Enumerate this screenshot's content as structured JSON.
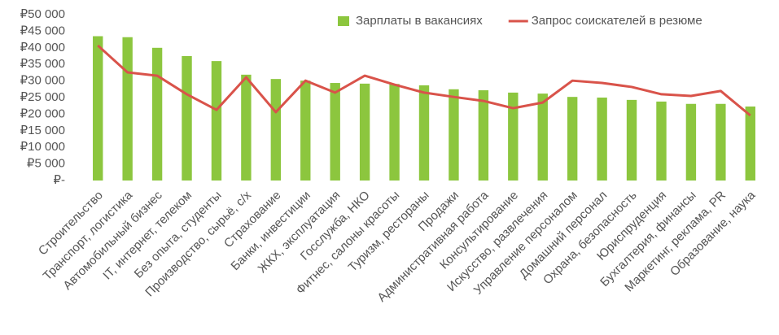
{
  "chart_data": {
    "type": "bar",
    "categories": [
      "Строительство",
      "Транспорт, логистика",
      "Автомобильный бизнес",
      "IT, интернет, телеком",
      "Без опыта, студенты",
      "Производство, сырьё, с/х",
      "Страхование",
      "Банки, инвестиции",
      "ЖКХ, эксплуатация",
      "Госслужба, НКО",
      "Фитнес, салоны красоты",
      "Туризм, рестораны",
      "Продажи",
      "Административная работа",
      "Консультирование",
      "Искусство, развлечения",
      "Управление персоналом",
      "Домашний персонал",
      "Охрана, безопасность",
      "Юриспруденция",
      "Бухгалтерия, финансы",
      "Маркетинг, реклама, PR",
      "Образование, наука"
    ],
    "series": [
      {
        "name": "Зарплаты в вакансиях",
        "type": "bar",
        "color": "#8cc63e",
        "values": [
          43500,
          43200,
          40000,
          37500,
          36000,
          31900,
          30600,
          30100,
          29400,
          29200,
          29100,
          28700,
          27500,
          27200,
          26500,
          26200,
          25200,
          25000,
          24300,
          23800,
          23100,
          23100,
          22300
        ]
      },
      {
        "name": "Запрос соискателей в резюме",
        "type": "line",
        "color": "#d9534a",
        "values": [
          40700,
          32600,
          31600,
          26000,
          21300,
          31100,
          20600,
          30100,
          26500,
          31600,
          28900,
          26500,
          25200,
          24000,
          21800,
          23500,
          30100,
          29400,
          28200,
          26000,
          25500,
          27000,
          19600
        ]
      }
    ],
    "ylim": [
      0,
      50000
    ],
    "yticks": [
      {
        "value": 0,
        "label": "₽-"
      },
      {
        "value": 5000,
        "label": "₽5 000"
      },
      {
        "value": 10000,
        "label": "₽10 000"
      },
      {
        "value": 15000,
        "label": "₽15 000"
      },
      {
        "value": 20000,
        "label": "₽20 000"
      },
      {
        "value": 25000,
        "label": "₽25 000"
      },
      {
        "value": 30000,
        "label": "₽30 000"
      },
      {
        "value": 35000,
        "label": "₽35 000"
      },
      {
        "value": 40000,
        "label": "₽40 000"
      },
      {
        "value": 45000,
        "label": "₽45 000"
      },
      {
        "value": 50000,
        "label": "₽50 000"
      }
    ],
    "grid": false,
    "legend": "top-right"
  }
}
